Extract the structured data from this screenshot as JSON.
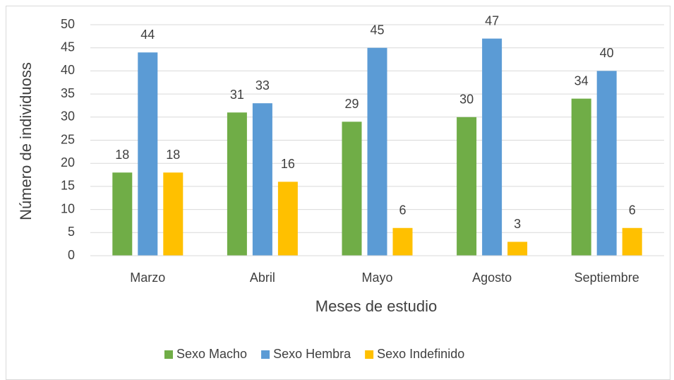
{
  "chart_data": {
    "type": "bar",
    "x_label": "Meses de estudio",
    "y_label": "Número de individuoss",
    "categories": [
      "Marzo",
      "Abril",
      "Mayo",
      "Agosto",
      "Septiembre"
    ],
    "series": [
      {
        "name": "Sexo Macho",
        "color": "#70ad47",
        "values": [
          18,
          31,
          29,
          30,
          34
        ]
      },
      {
        "name": "Sexo Hembra",
        "color": "#5b9bd5",
        "values": [
          44,
          33,
          45,
          47,
          40
        ]
      },
      {
        "name": "Sexo Indefinido",
        "color": "#ffc000",
        "values": [
          18,
          16,
          6,
          3,
          6
        ]
      }
    ],
    "ylim": [
      0,
      50
    ],
    "yticks": [
      0,
      5,
      10,
      15,
      20,
      25,
      30,
      35,
      40,
      45,
      50
    ],
    "grid": true,
    "legend": "bottom"
  }
}
